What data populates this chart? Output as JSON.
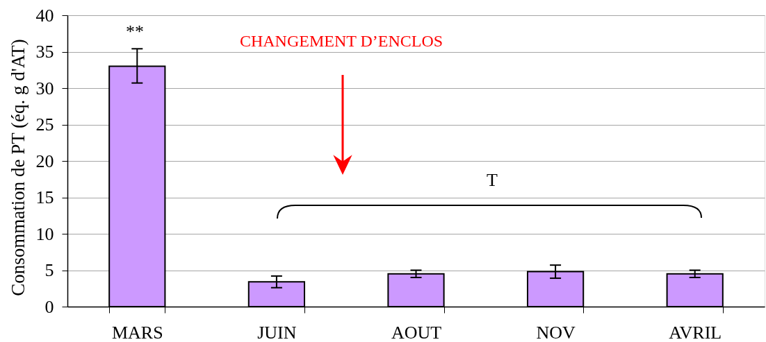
{
  "chart_data": {
    "type": "bar",
    "ylabel": "Consommation de PT (éq. g d'AT)",
    "categories": [
      "MARS",
      "JUIN",
      "AOUT",
      "NOV",
      "AVRIL"
    ],
    "values": [
      33.0,
      3.4,
      4.5,
      4.8,
      4.5
    ],
    "color": "#cc99ff",
    "errors": [
      [
        30.7,
        35.4
      ],
      [
        2.6,
        4.2
      ],
      [
        4.0,
        5.0
      ],
      [
        3.9,
        5.7
      ],
      [
        4.0,
        5.0
      ]
    ],
    "ylim": [
      0,
      40
    ],
    "yticks": [
      0,
      5,
      10,
      15,
      20,
      25,
      30,
      35,
      40
    ],
    "grid": "y",
    "annotations": [
      "**",
      "CHANGEMENT D’ENCLOS",
      "T"
    ]
  }
}
